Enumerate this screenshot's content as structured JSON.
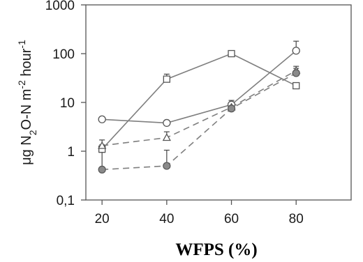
{
  "chart_data": {
    "type": "line",
    "xlabel": "WFPS (%)",
    "ylabel": {
      "prefix": "μg N",
      "sub": "2",
      "mid": "O-N m",
      "sup1": "-2",
      "mid2": " hour",
      "sup2": "-1"
    },
    "yscale": "log",
    "xlim": [
      15,
      97
    ],
    "ylim": [
      0.1,
      1000
    ],
    "x_ticks": [
      20,
      40,
      60,
      80
    ],
    "x_tick_labels": [
      "20",
      "40",
      "60",
      "80"
    ],
    "y_ticks": [
      0.1,
      1,
      10,
      100,
      1000
    ],
    "y_tick_labels": [
      "0,1",
      "1",
      "10",
      "100",
      "1000"
    ],
    "grid": false,
    "legend": "none",
    "series": [
      {
        "marker": "square",
        "line_style": "solid",
        "x": [
          20,
          40,
          60,
          80
        ],
        "y": [
          1.1,
          30,
          100,
          22
        ],
        "err_upper": [
          1.35,
          38,
          100,
          22
        ]
      },
      {
        "marker": "circle-open",
        "line_style": "solid",
        "x": [
          20,
          40,
          60,
          80
        ],
        "y": [
          4.5,
          3.8,
          9,
          115
        ],
        "err_upper": [
          4.5,
          3.8,
          11,
          180
        ]
      },
      {
        "marker": "triangle",
        "line_style": "dashed",
        "x": [
          20,
          40,
          60,
          80
        ],
        "y": [
          1.3,
          1.9,
          8,
          45
        ],
        "err_upper": [
          1.7,
          2.5,
          9.5,
          55
        ]
      },
      {
        "marker": "circle-filled",
        "line_style": "dashed",
        "x": [
          20,
          40,
          60,
          80
        ],
        "y": [
          0.42,
          0.5,
          7.5,
          40
        ],
        "err_upper": [
          0.95,
          1.05,
          7.5,
          50
        ]
      }
    ]
  }
}
